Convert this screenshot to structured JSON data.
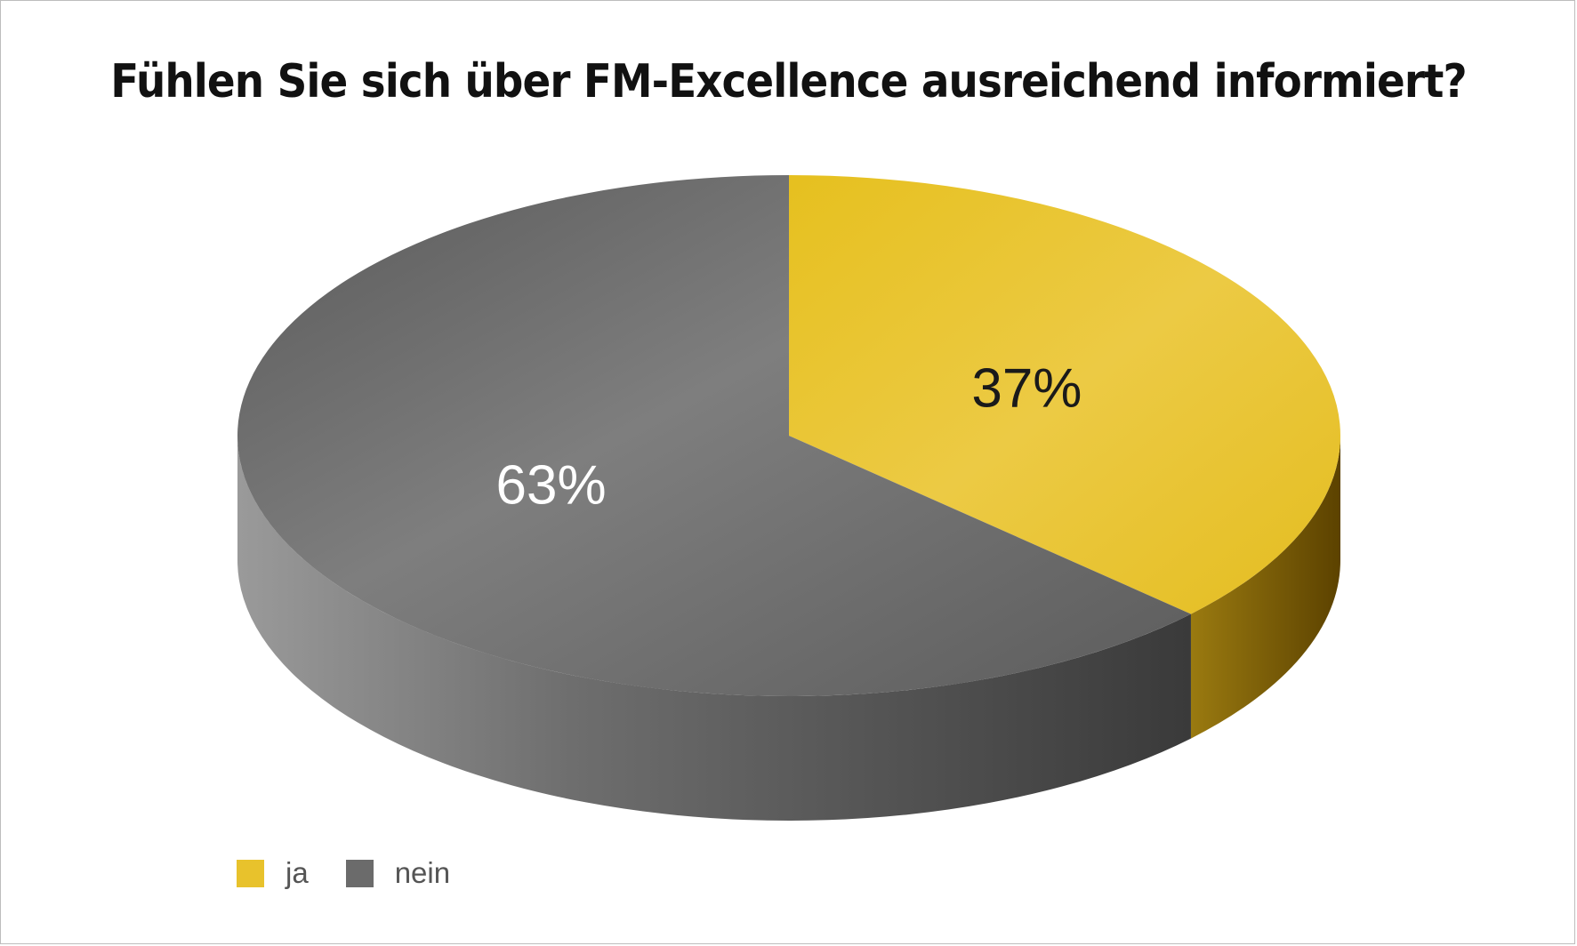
{
  "chart_data": {
    "type": "pie",
    "title": "Fühlen Sie sich über FM-Excellence ausreichend informiert?",
    "categories": [
      "ja",
      "nein"
    ],
    "values": [
      37,
      63
    ],
    "labels": [
      "37%",
      "63%"
    ],
    "colors": [
      "#e8c22c",
      "#6b6b6b"
    ],
    "legend_position": "bottom-left",
    "style": "3d"
  }
}
